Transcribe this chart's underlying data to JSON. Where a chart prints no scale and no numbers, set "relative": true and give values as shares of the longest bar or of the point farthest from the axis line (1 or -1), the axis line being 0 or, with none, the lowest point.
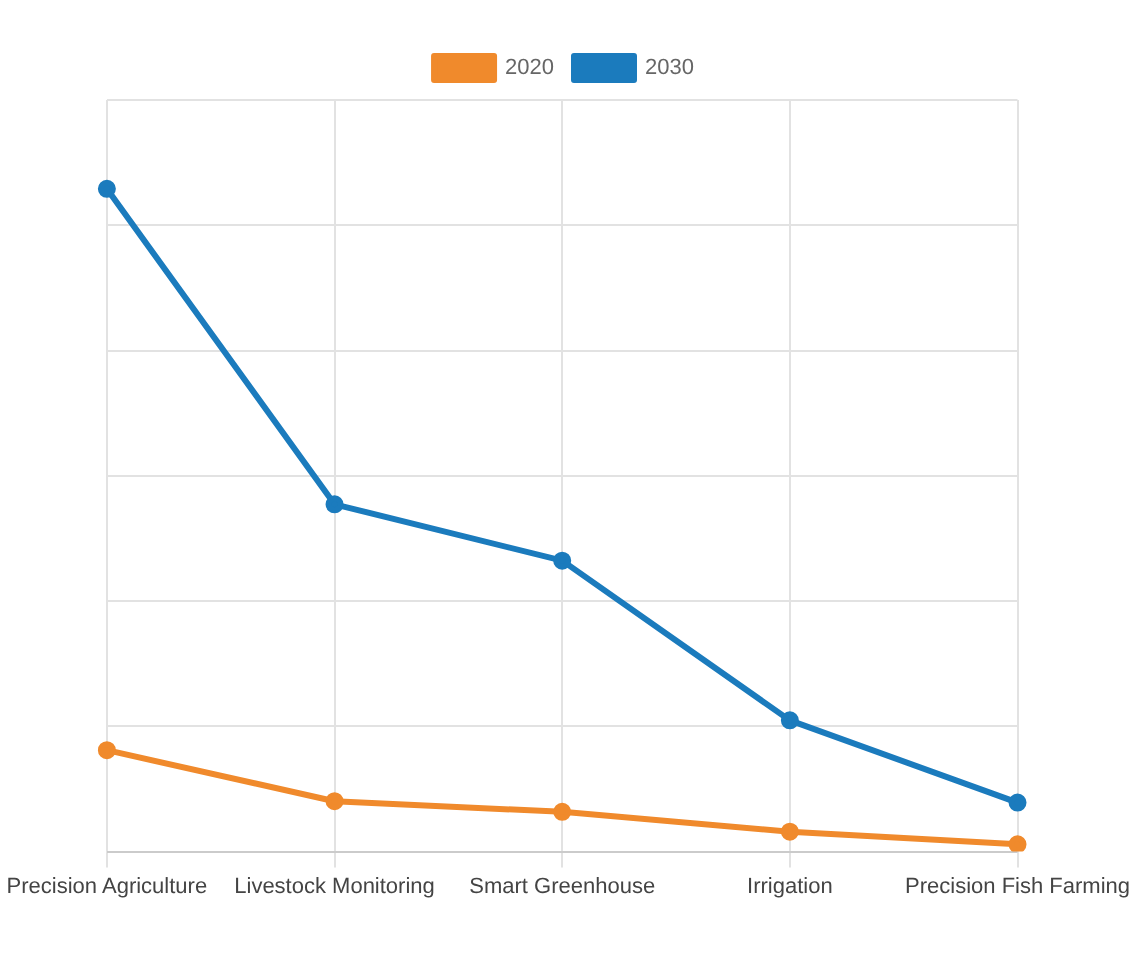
{
  "chart_data": {
    "type": "line",
    "relative": true,
    "categories": [
      "Precision Agriculture",
      "Livestock Monitoring",
      "Smart Greenhouse",
      "Irrigation",
      "Precision Fish Farming"
    ],
    "series": [
      {
        "name": "2020",
        "color": "#f08a2c",
        "values": [
          0.153,
          0.076,
          0.06,
          0.03,
          0.011
        ]
      },
      {
        "name": "2030",
        "color": "#1b7bbd",
        "values": [
          1,
          0.524,
          0.439,
          0.198,
          0.074
        ]
      }
    ],
    "grid": true,
    "legend": "top",
    "marker": "circle",
    "line_style": "solid"
  }
}
